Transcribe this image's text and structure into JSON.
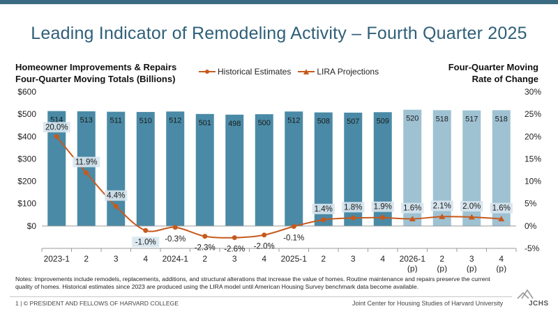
{
  "header": {
    "title": "Leading Indicator of Remodeling Activity – Fourth Quarter 2025"
  },
  "axes": {
    "left_title": [
      "Homeowner Improvements & Repairs",
      "Four-Quarter Moving Totals (Billions)"
    ],
    "right_title": [
      "Four-Quarter Moving",
      "Rate of Change"
    ]
  },
  "legend": {
    "historical": "Historical Estimates",
    "projections": "LIRA Projections"
  },
  "notes": "Notes: Improvements include remodels, replacements, additions, and structural alterations that increase the value of homes. Routine maintenance and repairs preserve the current quality of homes. Historical estimates since 2023 are produced using the LIRA model until American Housing Survey benchmark data become available.",
  "footer": {
    "left": "1 | © PRESIDENT AND FELLOWS OF HARVARD COLLEGE",
    "right": "Joint Center for Housing Studies of Harvard University",
    "logo_text": "JCHS"
  },
  "colors": {
    "title": "#2f5f78",
    "bar_historical": "#4a8aa6",
    "bar_projection": "#9fc2d3",
    "line": "#c65a1e",
    "label_box": "#d8e6ee"
  },
  "chart_data": {
    "type": "bar",
    "categories": [
      "2023-1",
      "2",
      "3",
      "4",
      "2024-1",
      "2",
      "3",
      "4",
      "2025-1",
      "2",
      "3",
      "4",
      "2026-1",
      "2",
      "3",
      "4"
    ],
    "category_sublabels": [
      "",
      "",
      "",
      "",
      "",
      "",
      "",
      "",
      "",
      "",
      "",
      "",
      "(p)",
      "(p)",
      "(p)",
      "(p)"
    ],
    "series": [
      {
        "name": "Homeowner Improvements & Repairs",
        "type": "bar",
        "axis": "left",
        "values": [
          514,
          513,
          511,
          510,
          512,
          501,
          498,
          500,
          512,
          508,
          507,
          509,
          520,
          518,
          517,
          518
        ],
        "projected": [
          false,
          false,
          false,
          false,
          false,
          false,
          false,
          false,
          false,
          false,
          false,
          false,
          true,
          true,
          true,
          true
        ]
      },
      {
        "name": "Historical Estimates",
        "type": "line",
        "axis": "right",
        "values": [
          20.0,
          11.9,
          4.4,
          -1.0,
          -0.3,
          -2.3,
          -2.6,
          -2.0,
          -0.1,
          1.4,
          1.8,
          1.9,
          null,
          null,
          null,
          null
        ],
        "labels": [
          "20.0%",
          "11.9%",
          "4.4%",
          "-1.0%",
          "-0.3%",
          "-2.3%",
          "-2.6%",
          "-2.0%",
          "-0.1%",
          "1.4%",
          "1.8%",
          "1.9%",
          "",
          "",
          "",
          ""
        ]
      },
      {
        "name": "LIRA Projections",
        "type": "line",
        "axis": "right",
        "values": [
          null,
          null,
          null,
          null,
          null,
          null,
          null,
          null,
          null,
          null,
          null,
          1.9,
          1.6,
          2.1,
          2.0,
          1.6
        ],
        "labels": [
          "",
          "",
          "",
          "",
          "",
          "",
          "",
          "",
          "",
          "",
          "",
          "",
          "1.6%",
          "2.1%",
          "2.0%",
          "1.6%"
        ]
      }
    ],
    "y_left": {
      "ticks": [
        "$600",
        "$500",
        "$400",
        "$300",
        "$200",
        "$100",
        "$0"
      ],
      "ylim": [
        -100,
        600
      ]
    },
    "y_right": {
      "ticks": [
        "30%",
        "25%",
        "20%",
        "15%",
        "10%",
        "5%",
        "0%",
        "-5%"
      ],
      "ylim": [
        -5,
        30
      ]
    },
    "grid": false,
    "legend_position": "top-center"
  }
}
